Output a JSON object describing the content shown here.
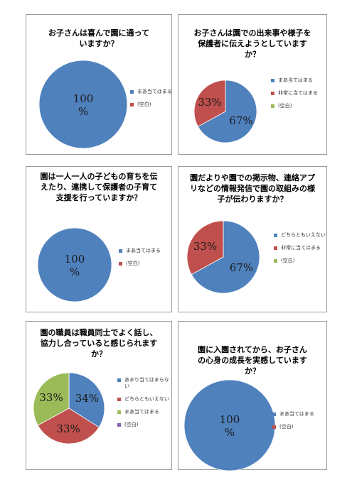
{
  "colors": {
    "blue": "#4f81bd",
    "red": "#c0504d",
    "green": "#9bbb59",
    "purple": "#8064a2"
  },
  "chart_data": [
    {
      "type": "pie",
      "title": "お子さんは喜んで園に通っていますか？",
      "categories": [
        "まあ当てはまる",
        "(空白)"
      ],
      "values": [
        100,
        0
      ],
      "labels": [
        "100%",
        ""
      ],
      "legend": "right"
    },
    {
      "type": "pie",
      "title": "お子さんは園での出来事や様子を保護者に伝えようとしていますか？",
      "categories": [
        "まあ当てはまる",
        "非常に当てはまる",
        "(空白)"
      ],
      "values": [
        67,
        33,
        0
      ],
      "labels": [
        "67%",
        "33%",
        ""
      ],
      "legend": "right"
    },
    {
      "type": "pie",
      "title": "園は一人一人の子どもの育ちを伝えたり、連携して保護者の子育て支援を行っていますか？",
      "categories": [
        "まあ当てはまる",
        "(空白)"
      ],
      "values": [
        100,
        0
      ],
      "labels": [
        "100%",
        ""
      ],
      "legend": "right"
    },
    {
      "type": "pie",
      "title": "園だよりや園での掲示物、連絡アプリなどの情報発信で園の取組みの様子が伝わりますか？",
      "categories": [
        "どちらともいえない",
        "非常に当てはまる",
        "(空白)"
      ],
      "values": [
        67,
        33,
        0
      ],
      "labels": [
        "67%",
        "33%",
        ""
      ],
      "legend": "right"
    },
    {
      "type": "pie",
      "title": "園の職員は職員同士でよく話し、協力し合っていると感じられますか？",
      "categories": [
        "あまり当てはまらない",
        "どちらともいえない",
        "まあ当てはまる",
        "(空白)"
      ],
      "values": [
        34,
        33,
        33,
        0
      ],
      "labels": [
        "34%",
        "33%",
        "33%",
        ""
      ],
      "legend": "right"
    },
    {
      "type": "pie",
      "title": "園に入園されてから、お子さんの心身の成長を実感していますか？",
      "categories": [
        "まあ当てはまる",
        "(空白)"
      ],
      "values": [
        100,
        0
      ],
      "labels": [
        "100%",
        ""
      ],
      "legend": "right"
    }
  ]
}
